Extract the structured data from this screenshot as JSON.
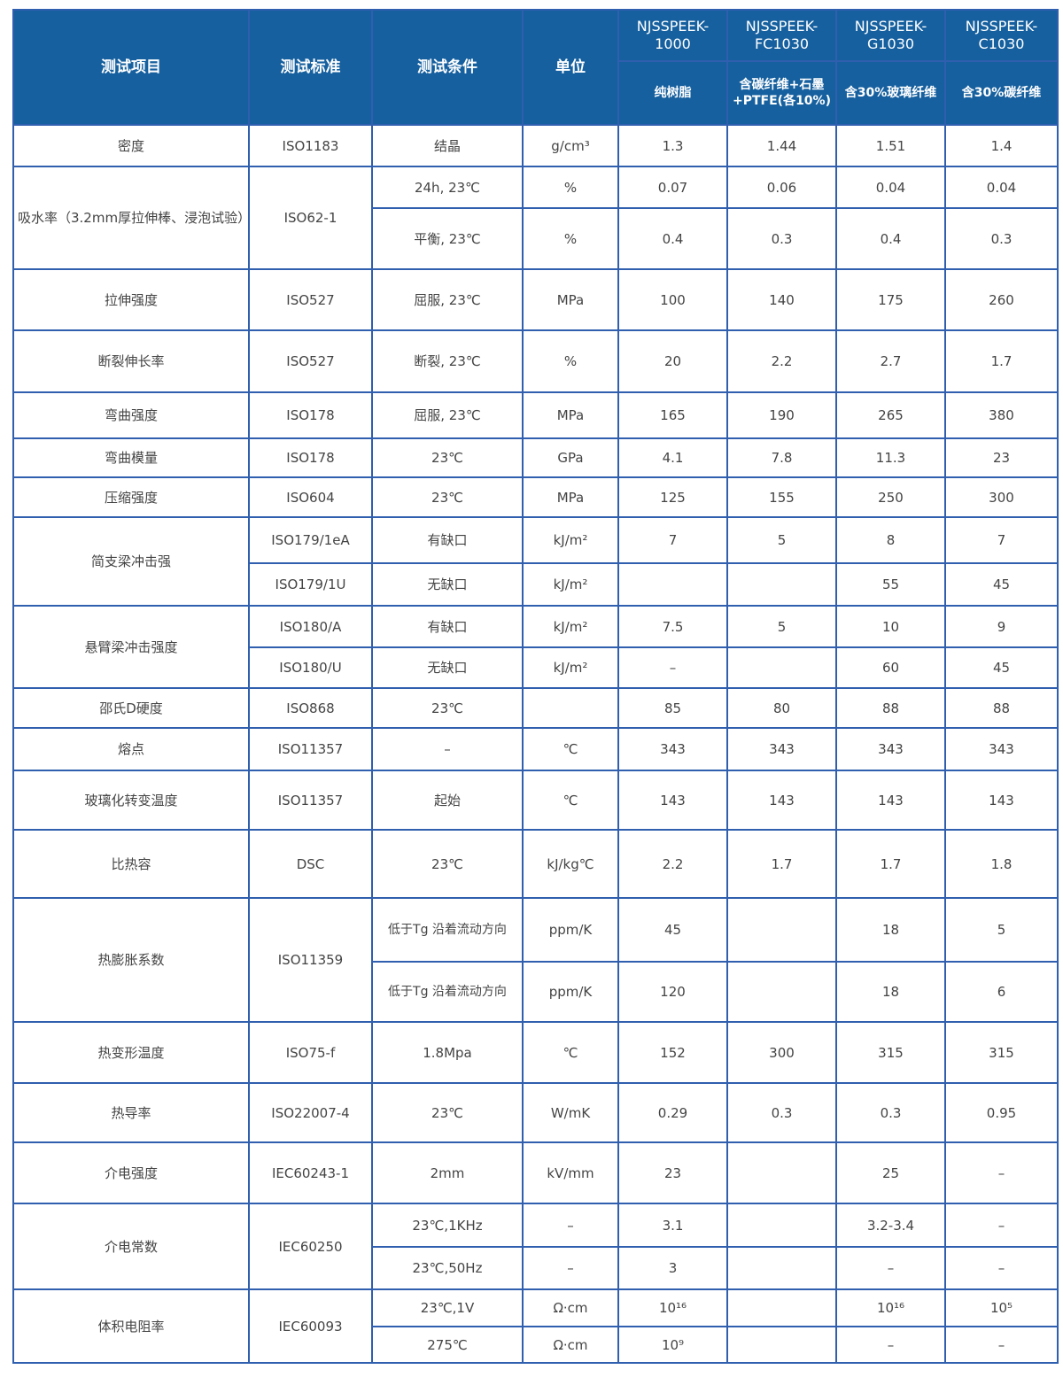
{
  "header": {
    "item": "测试项目",
    "standard": "测试标准",
    "condition": "测试条件",
    "unit": "单位",
    "products": [
      {
        "name": "NJSSPEEK-1000",
        "desc": "纯树脂"
      },
      {
        "name": "NJSSPEEK-FC1030",
        "desc": "含碳纤维+石墨+PTFE(各10%)"
      },
      {
        "name": "NJSSPEEK-G1030",
        "desc": "含30%玻璃纤维"
      },
      {
        "name": "NJSSPEEK-C1030",
        "desc": "含30%碳纤维"
      }
    ]
  },
  "colors": {
    "header_bg": "#16609f",
    "border": "#2f5fae",
    "text": "#444444"
  },
  "rows": [
    {
      "item": "密度",
      "standard": "ISO1183",
      "sub": [
        {
          "cond": "结晶",
          "unit": "g/cm³",
          "v": [
            "1.3",
            "1.44",
            "1.51",
            "1.4"
          ]
        }
      ]
    },
    {
      "item": "吸水率（3.2mm厚拉伸棒、浸泡试验）",
      "standard": "ISO62-1",
      "sub": [
        {
          "cond": "24h, 23℃",
          "unit": "%",
          "v": [
            "0.07",
            "0.06",
            "0.04",
            "0.04"
          ]
        },
        {
          "cond": "平衡, 23℃",
          "unit": "%",
          "v": [
            "0.4",
            "0.3",
            "0.4",
            "0.3"
          ]
        }
      ]
    },
    {
      "item": "拉伸强度",
      "standard": "ISO527",
      "sub": [
        {
          "cond": "屈服, 23℃",
          "unit": "MPa",
          "v": [
            "100",
            "140",
            "175",
            "260"
          ]
        }
      ]
    },
    {
      "item": "断裂伸长率",
      "standard": "ISO527",
      "sub": [
        {
          "cond": "断裂, 23℃",
          "unit": "%",
          "v": [
            "20",
            "2.2",
            "2.7",
            "1.7"
          ]
        }
      ]
    },
    {
      "item": "弯曲强度",
      "standard": "ISO178",
      "sub": [
        {
          "cond": "屈服, 23℃",
          "unit": "MPa",
          "v": [
            "165",
            "190",
            "265",
            "380"
          ]
        }
      ]
    },
    {
      "item": "弯曲模量",
      "standard": "ISO178",
      "sub": [
        {
          "cond": "23℃",
          "unit": "GPa",
          "v": [
            "4.1",
            "7.8",
            "11.3",
            "23"
          ]
        }
      ]
    },
    {
      "item": "压缩强度",
      "standard": "ISO604",
      "sub": [
        {
          "cond": "23℃",
          "unit": "MPa",
          "v": [
            "125",
            "155",
            "250",
            "300"
          ]
        }
      ]
    },
    {
      "item": "简支梁冲击强",
      "sub": [
        {
          "standard": "ISO179/1eA",
          "cond": "有缺口",
          "unit": "kJ/m²",
          "v": [
            "7",
            "5",
            "8",
            "7"
          ]
        },
        {
          "standard": "ISO179/1U",
          "cond": "无缺口",
          "unit": "kJ/m²",
          "v": [
            "",
            "",
            "55",
            "45"
          ]
        }
      ]
    },
    {
      "item": "悬臂梁冲击强度",
      "sub": [
        {
          "standard": "ISO180/A",
          "cond": "有缺口",
          "unit": "kJ/m²",
          "v": [
            "7.5",
            "5",
            "10",
            "9"
          ]
        },
        {
          "standard": "ISO180/U",
          "cond": "无缺口",
          "unit": "kJ/m²",
          "v": [
            "–",
            "",
            "60",
            "45"
          ]
        }
      ]
    },
    {
      "item": "邵氏D硬度",
      "standard": "ISO868",
      "sub": [
        {
          "cond": "23℃",
          "unit": "",
          "v": [
            "85",
            "80",
            "88",
            "88"
          ]
        }
      ]
    },
    {
      "item": "熔点",
      "standard": "ISO11357",
      "sub": [
        {
          "cond": "–",
          "unit": "℃",
          "v": [
            "343",
            "343",
            "343",
            "343"
          ]
        }
      ]
    },
    {
      "item": "玻璃化转变温度",
      "standard": "ISO11357",
      "sub": [
        {
          "cond": "起始",
          "unit": "℃",
          "v": [
            "143",
            "143",
            "143",
            "143"
          ]
        }
      ]
    },
    {
      "item": "比热容",
      "standard": "DSC",
      "sub": [
        {
          "cond": "23℃",
          "unit": "kJ/kg℃",
          "v": [
            "2.2",
            "1.7",
            "1.7",
            "1.8"
          ]
        }
      ]
    },
    {
      "item": "热膨胀系数",
      "standard": "ISO11359",
      "sub": [
        {
          "cond": "低于Tg 沿着流动方向",
          "unit": "ppm/K",
          "v": [
            "45",
            "",
            "18",
            "5"
          ]
        },
        {
          "cond": "低于Tg 沿着流动方向",
          "unit": "ppm/K",
          "v": [
            "120",
            "",
            "18",
            "6"
          ]
        }
      ]
    },
    {
      "item": "热变形温度",
      "standard": "ISO75-f",
      "sub": [
        {
          "cond": "1.8Mpa",
          "unit": "℃",
          "v": [
            "152",
            "300",
            "315",
            "315"
          ]
        }
      ]
    },
    {
      "item": "热导率",
      "standard": "ISO22007-4",
      "sub": [
        {
          "cond": "23℃",
          "unit": "W/mK",
          "v": [
            "0.29",
            "0.3",
            "0.3",
            "0.95"
          ]
        }
      ]
    },
    {
      "item": "介电强度",
      "standard": "IEC60243-1",
      "sub": [
        {
          "cond": "2mm",
          "unit": "kV/mm",
          "v": [
            "23",
            "",
            "25",
            "–"
          ]
        }
      ]
    },
    {
      "item": "介电常数",
      "standard": "IEC60250",
      "sub": [
        {
          "cond": "23℃,1KHz",
          "unit": "–",
          "v": [
            "3.1",
            "",
            "3.2-3.4",
            "–"
          ]
        },
        {
          "cond": "23℃,50Hz",
          "unit": "–",
          "v": [
            "3",
            "",
            "–",
            "–"
          ]
        }
      ]
    },
    {
      "item": "体积电阻率",
      "standard": "IEC60093",
      "sub": [
        {
          "cond": "23℃,1V",
          "unit": "Ω·cm",
          "v": [
            "10¹⁶",
            "",
            "10¹⁶",
            "10⁵"
          ]
        },
        {
          "cond": "275℃",
          "unit": "Ω·cm",
          "v": [
            "10⁹",
            "",
            "–",
            "–"
          ]
        }
      ]
    }
  ]
}
